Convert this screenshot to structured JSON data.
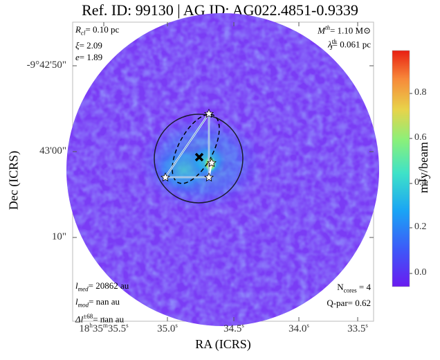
{
  "title": "Ref. ID: 99130 | AG ID: AG022.4851-0.9339",
  "xlabel": "RA (ICRS)",
  "ylabel": "Dec (ICRS)",
  "colorbar": {
    "label": "mJy/beam",
    "ticks": [
      "0.0",
      "0.2",
      "0.4",
      "0.6",
      "0.8"
    ]
  },
  "yticks": [
    "-9°42'50\"",
    "43'00\"",
    "10\""
  ],
  "xticks": [
    {
      "h": "18",
      "m": "35",
      "s": "35.5"
    },
    {
      "s": "35.0"
    },
    {
      "s": "34.5"
    },
    {
      "s": "34.0"
    },
    {
      "s": "33.5"
    }
  ],
  "annotations": {
    "top_left": {
      "rcl_sym": "R",
      "rcl_sub": "cl",
      "rcl_val": "= 0.10 pc",
      "xi_sym": "ξ",
      "xi_val": "= 2.09",
      "e_sym": "e",
      "e_val": "= 1.89"
    },
    "top_right": {
      "m_sym": "M",
      "m_sup": "th",
      "m_val": "= 1.10 M⊙",
      "l_sym": "λ",
      "l_sup": "th",
      "l_sub": "J",
      "l_val": "= 0.061 pc"
    },
    "bottom_left": {
      "lmed_sym": "l",
      "lmed_sub": "med",
      "lmed_val": "= 20862 au",
      "lmod_sym": "l",
      "lmod_sub": "mod",
      "lmod_val": "= nan au",
      "dl_sym": "Δl",
      "dl_sup": "±68",
      "dl_val": "= nan au"
    },
    "bottom_right": {
      "n_sym": "N",
      "n_sub": "cores",
      "n_val": " = 4",
      "q_text": "Q-par= 0.62"
    }
  },
  "colors": {
    "background_map": "#7a3cf5",
    "cmap": [
      "#6a1bf0",
      "#3f56f8",
      "#1aa4f5",
      "#3ee2c8",
      "#8af07a",
      "#e8d34a",
      "#f7893a",
      "#e81f12"
    ]
  }
}
